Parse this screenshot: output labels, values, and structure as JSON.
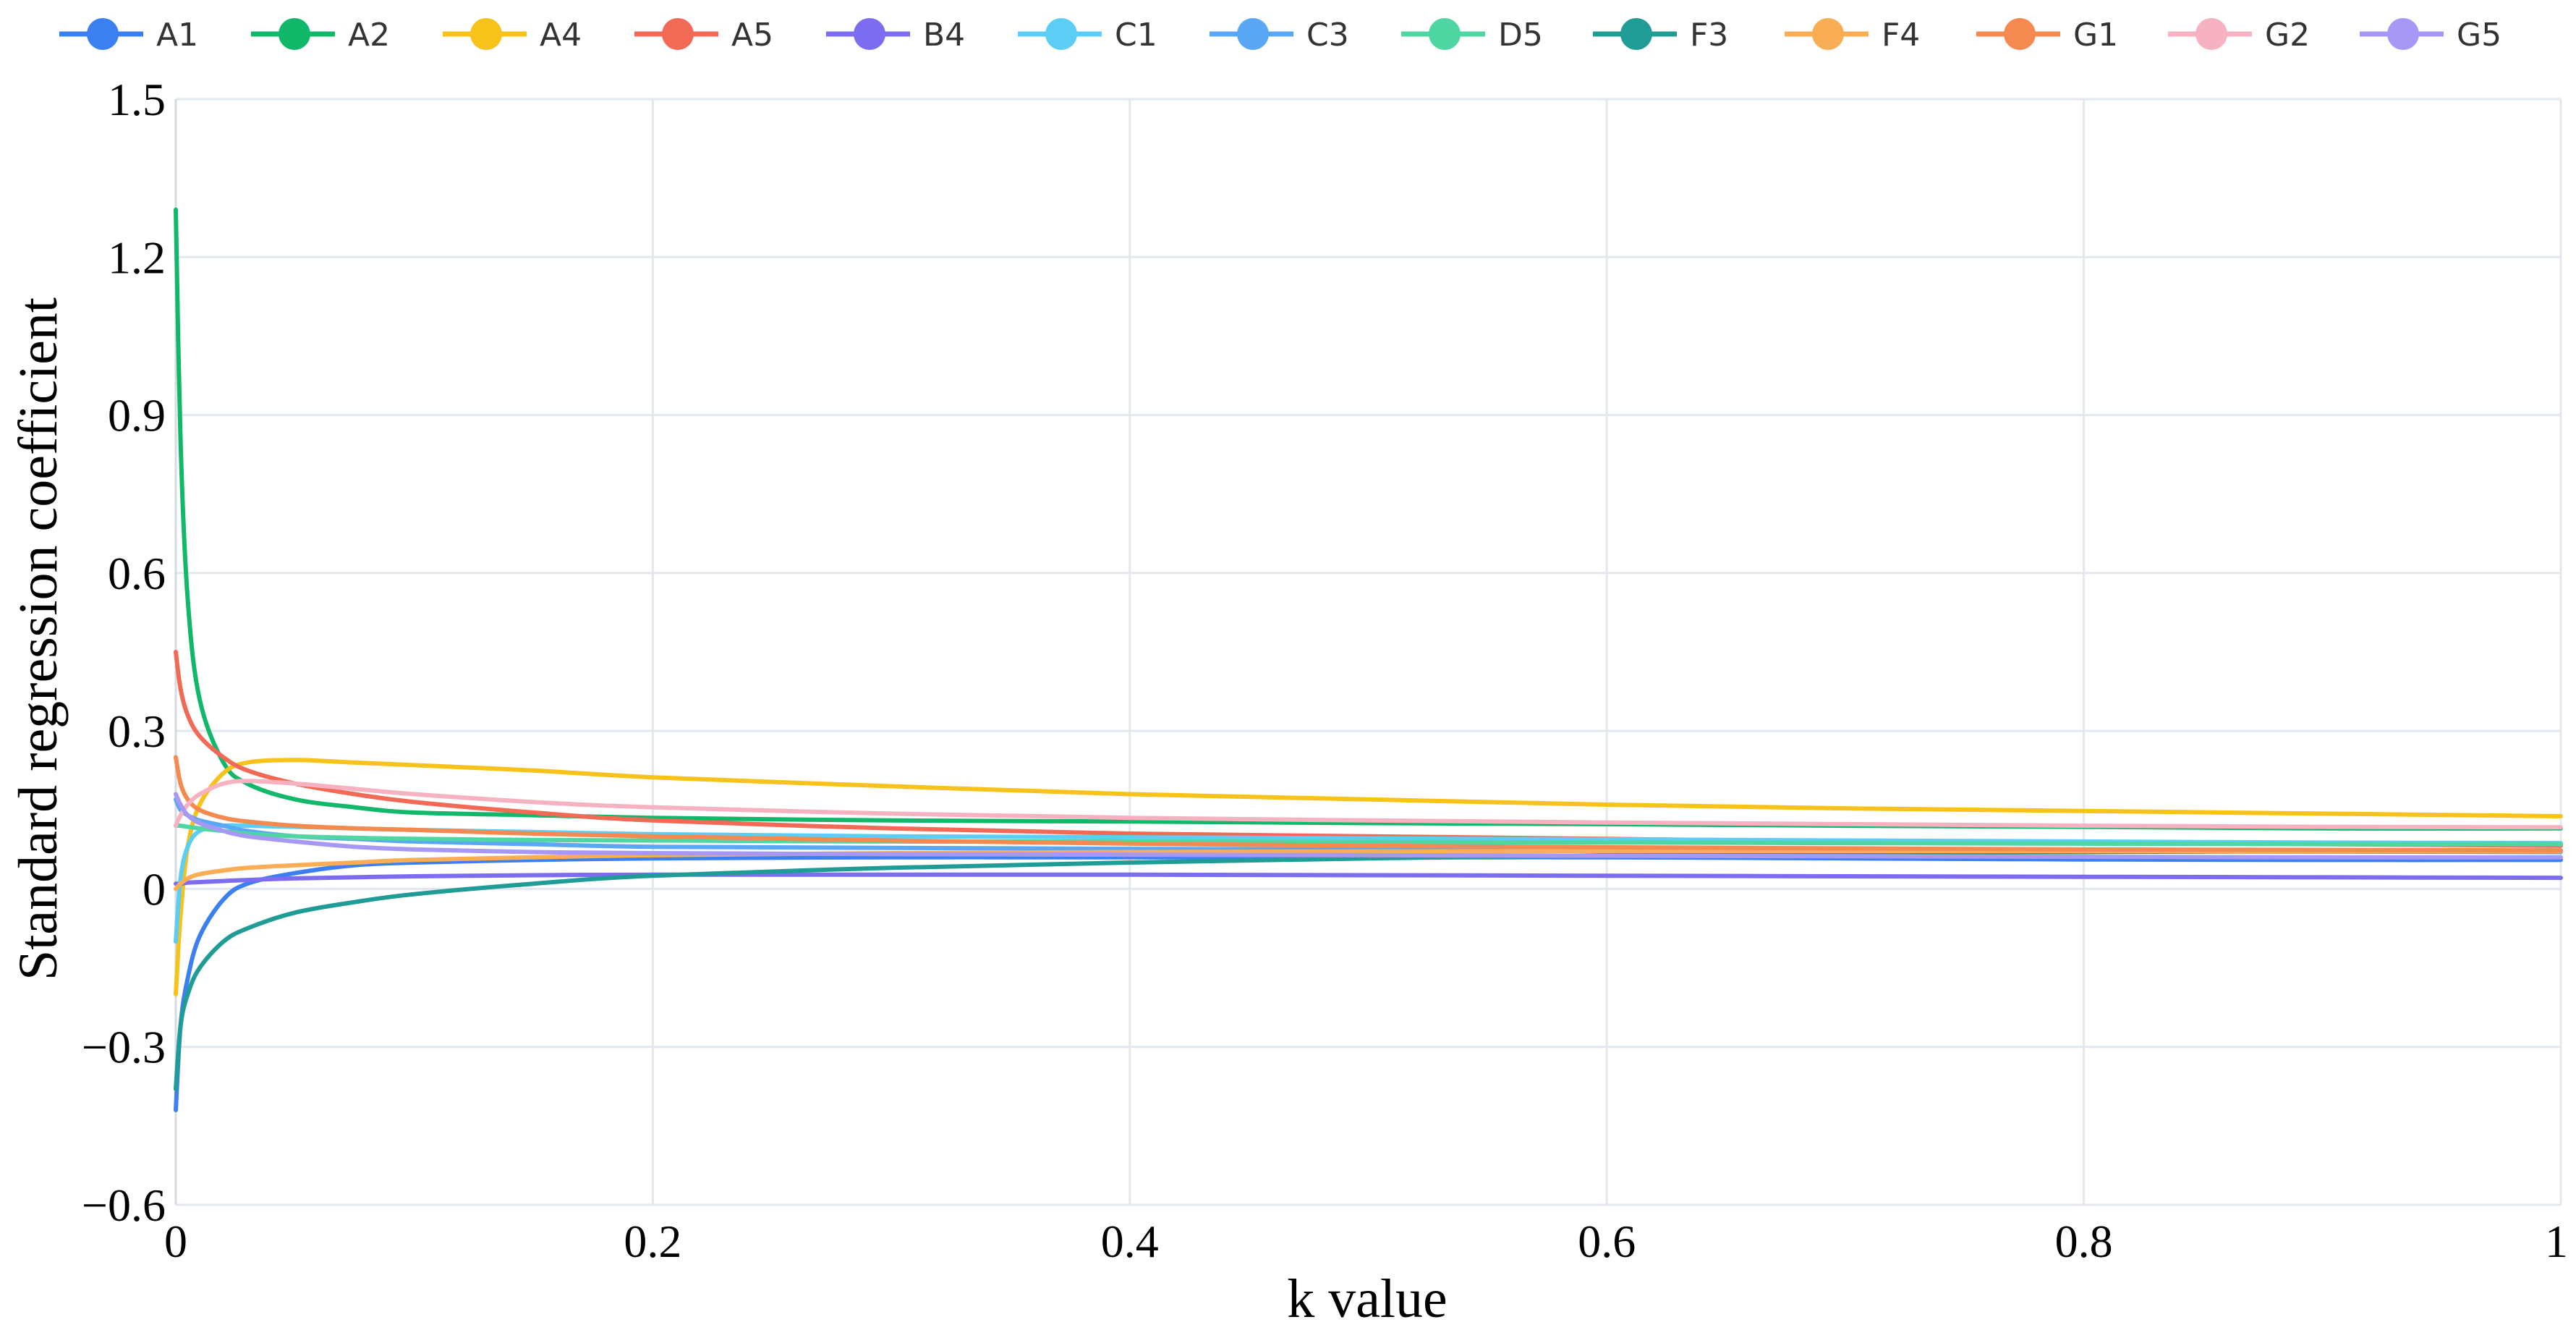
{
  "chart_data": {
    "type": "line",
    "title": "",
    "xlabel": "k value",
    "ylabel": "Standard regression coefficient",
    "xlim": [
      0,
      1
    ],
    "ylim": [
      -0.6,
      1.5
    ],
    "x_ticks": [
      0,
      0.2,
      0.4,
      0.6,
      0.8,
      1
    ],
    "x_tick_labels": [
      "0",
      "0.2",
      "0.4",
      "0.6",
      "0.8",
      "1"
    ],
    "y_ticks": [
      -0.6,
      -0.3,
      0,
      0.3,
      0.6,
      0.9,
      1.2,
      1.5
    ],
    "y_tick_labels": [
      "−0.6",
      "−0.3",
      "0",
      "0.3",
      "0.6",
      "0.9",
      "1.2",
      "1.5"
    ],
    "grid": true,
    "legend_position": "top",
    "x": [
      0,
      0.002,
      0.005,
      0.01,
      0.02,
      0.03,
      0.05,
      0.075,
      0.1,
      0.15,
      0.2,
      0.3,
      0.4,
      0.5,
      0.6,
      0.7,
      0.8,
      0.9,
      1.0
    ],
    "series": [
      {
        "name": "A1",
        "color": "#3b7ff0",
        "values": [
          -0.42,
          -0.26,
          -0.17,
          -0.09,
          -0.02,
          0.01,
          0.03,
          0.045,
          0.05,
          0.055,
          0.058,
          0.06,
          0.06,
          0.06,
          0.06,
          0.058,
          0.056,
          0.055,
          0.055
        ]
      },
      {
        "name": "A2",
        "color": "#11b86a",
        "values": [
          1.29,
          0.85,
          0.55,
          0.36,
          0.24,
          0.2,
          0.17,
          0.155,
          0.145,
          0.14,
          0.135,
          0.13,
          0.128,
          0.125,
          0.123,
          0.12,
          0.118,
          0.115,
          0.115
        ]
      },
      {
        "name": "A4",
        "color": "#f7c21a",
        "values": [
          -0.2,
          -0.05,
          0.08,
          0.16,
          0.22,
          0.24,
          0.245,
          0.24,
          0.235,
          0.225,
          0.212,
          0.195,
          0.18,
          0.17,
          0.16,
          0.153,
          0.148,
          0.143,
          0.138
        ]
      },
      {
        "name": "A5",
        "color": "#f26a56",
        "values": [
          0.45,
          0.38,
          0.33,
          0.29,
          0.25,
          0.225,
          0.2,
          0.18,
          0.165,
          0.145,
          0.13,
          0.115,
          0.105,
          0.1,
          0.095,
          0.09,
          0.088,
          0.085,
          0.082
        ]
      },
      {
        "name": "B4",
        "color": "#7b6cf0",
        "values": [
          0.01,
          0.01,
          0.012,
          0.013,
          0.015,
          0.017,
          0.02,
          0.022,
          0.024,
          0.026,
          0.027,
          0.027,
          0.027,
          0.026,
          0.025,
          0.024,
          0.023,
          0.022,
          0.021
        ]
      },
      {
        "name": "C1",
        "color": "#5ccef5",
        "values": [
          -0.1,
          0.02,
          0.08,
          0.11,
          0.12,
          0.12,
          0.118,
          0.115,
          0.112,
          0.108,
          0.104,
          0.1,
          0.098,
          0.096,
          0.094,
          0.092,
          0.09,
          0.088,
          0.087
        ]
      },
      {
        "name": "C3",
        "color": "#5aa7f5",
        "values": [
          0.17,
          0.15,
          0.14,
          0.13,
          0.12,
          0.11,
          0.1,
          0.095,
          0.09,
          0.085,
          0.08,
          0.078,
          0.076,
          0.075,
          0.074,
          0.073,
          0.072,
          0.071,
          0.07
        ]
      },
      {
        "name": "D5",
        "color": "#4fd6a2",
        "values": [
          0.12,
          0.12,
          0.118,
          0.115,
          0.11,
          0.105,
          0.1,
          0.097,
          0.095,
          0.093,
          0.092,
          0.09,
          0.09,
          0.089,
          0.088,
          0.087,
          0.086,
          0.085,
          0.085
        ]
      },
      {
        "name": "F3",
        "color": "#1f9c95",
        "values": [
          -0.38,
          -0.26,
          -0.2,
          -0.15,
          -0.1,
          -0.075,
          -0.045,
          -0.025,
          -0.01,
          0.01,
          0.025,
          0.04,
          0.05,
          0.058,
          0.064,
          0.068,
          0.07,
          0.072,
          0.073
        ]
      },
      {
        "name": "F4",
        "color": "#f9ae56",
        "values": [
          0.0,
          0.01,
          0.02,
          0.028,
          0.035,
          0.04,
          0.045,
          0.05,
          0.055,
          0.06,
          0.064,
          0.068,
          0.07,
          0.071,
          0.072,
          0.072,
          0.072,
          0.072,
          0.072
        ]
      },
      {
        "name": "G1",
        "color": "#f58a50",
        "values": [
          0.25,
          0.2,
          0.17,
          0.15,
          0.135,
          0.128,
          0.12,
          0.115,
          0.112,
          0.105,
          0.1,
          0.092,
          0.086,
          0.082,
          0.079,
          0.077,
          0.075,
          0.074,
          0.073
        ]
      },
      {
        "name": "G2",
        "color": "#f7b2c1",
        "values": [
          0.12,
          0.14,
          0.16,
          0.18,
          0.2,
          0.205,
          0.2,
          0.19,
          0.18,
          0.165,
          0.155,
          0.143,
          0.135,
          0.13,
          0.126,
          0.123,
          0.12,
          0.118,
          0.117
        ]
      },
      {
        "name": "G5",
        "color": "#a898f5",
        "values": [
          0.18,
          0.16,
          0.14,
          0.125,
          0.11,
          0.1,
          0.09,
          0.08,
          0.075,
          0.07,
          0.068,
          0.066,
          0.065,
          0.064,
          0.063,
          0.062,
          0.061,
          0.06,
          0.06
        ]
      }
    ]
  }
}
